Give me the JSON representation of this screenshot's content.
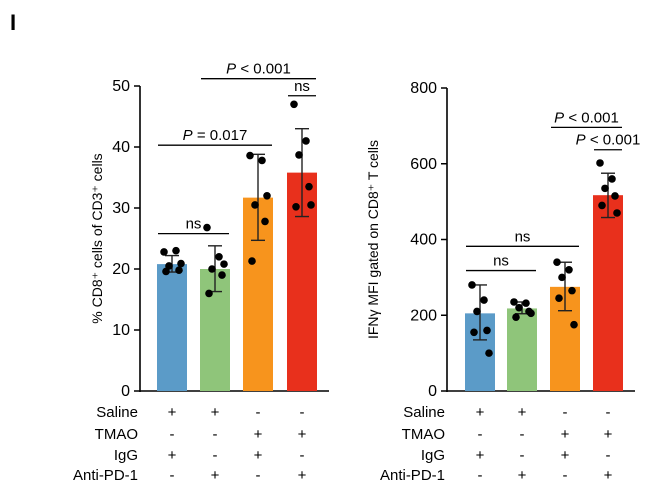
{
  "panel_label": "I",
  "conditions": {
    "row_labels": [
      "Saline",
      "TMAO",
      "IgG",
      "Anti-PD-1"
    ],
    "signs": [
      [
        "+",
        "+",
        "-",
        "-"
      ],
      [
        "-",
        "-",
        "+",
        "+"
      ],
      [
        "+",
        "-",
        "+",
        "-"
      ],
      [
        "-",
        "+",
        "-",
        "+"
      ]
    ]
  },
  "chart_data": [
    {
      "type": "bar",
      "categories": [
        "Saline + IgG",
        "Saline + Anti-PD-1",
        "TMAO + IgG",
        "TMAO + Anti-PD-1"
      ],
      "values": [
        20.8,
        20.0,
        31.7,
        35.8
      ],
      "error": [
        [
          19.5,
          22.2
        ],
        [
          16.3,
          23.8
        ],
        [
          24.7,
          38.8
        ],
        [
          28.6,
          43.0
        ]
      ],
      "colors": [
        "#5b9bc8",
        "#8fc57a",
        "#f7941d",
        "#e8301c"
      ],
      "points": [
        [
          22.8,
          23.0,
          20.5,
          19.8,
          19.6,
          20.9
        ],
        [
          26.8,
          22.0,
          20.0,
          19.0,
          16.0,
          20.8
        ],
        [
          38.6,
          37.8,
          30.5,
          27.8,
          21.3,
          32.0
        ],
        [
          47.0,
          41.0,
          38.7,
          33.5,
          30.2,
          30.5
        ]
      ],
      "ylabel": "% CD8⁺ cells of CD3⁺ cells",
      "ylim": [
        0,
        50
      ],
      "yticks": [
        "0",
        "10",
        "20",
        "30",
        "40",
        "50"
      ],
      "annotations": [
        {
          "from": 0,
          "to": 1,
          "text": "ns",
          "y": 25.8
        },
        {
          "from": 0,
          "to": 2,
          "text": "P = 0.017",
          "y": 40.3
        },
        {
          "from": 3,
          "to": 3,
          "text": "ns",
          "y": 48.4
        },
        {
          "from": 1,
          "to": 3,
          "text": "P < 0.001",
          "y": 51.2
        }
      ]
    },
    {
      "type": "bar",
      "categories": [
        "Saline + IgG",
        "Saline + Anti-PD-1",
        "TMAO + IgG",
        "TMAO + Anti-PD-1"
      ],
      "values": [
        205,
        218,
        275,
        517
      ],
      "error": [
        [
          135,
          280
        ],
        [
          204,
          235
        ],
        [
          212,
          340
        ],
        [
          458,
          575
        ]
      ],
      "colors": [
        "#5b9bc8",
        "#8fc57a",
        "#f7941d",
        "#e8301c"
      ],
      "points": [
        [
          280,
          240,
          210,
          160,
          155,
          100
        ],
        [
          235,
          232,
          220,
          210,
          195,
          205
        ],
        [
          340,
          320,
          300,
          265,
          245,
          175
        ],
        [
          602,
          560,
          535,
          515,
          490,
          470
        ]
      ],
      "ylabel": "IFNγ MFI gated on CD8⁺ T cells",
      "ylim": [
        0,
        800
      ],
      "yticks": [
        "0",
        "200",
        "400",
        "600",
        "800"
      ],
      "annotations": [
        {
          "from": 0,
          "to": 1,
          "text": "ns",
          "y": 318
        },
        {
          "from": 0,
          "to": 2,
          "text": "ns",
          "y": 382
        },
        {
          "from": 3,
          "to": 3,
          "text": "P < 0.001",
          "y": 637
        },
        {
          "from": 2,
          "to": 3,
          "text": "P < 0.001",
          "y": 696
        }
      ]
    }
  ]
}
